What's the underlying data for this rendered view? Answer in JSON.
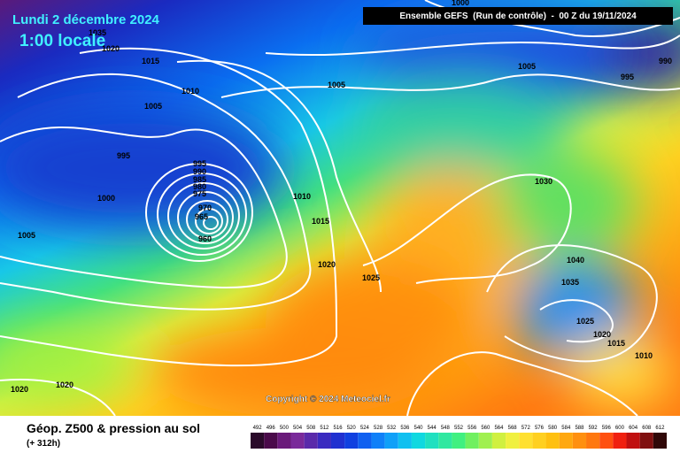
{
  "header": {
    "date": "Lundi 2 décembre 2024",
    "time": "1:00 locale",
    "model": "Ensemble GEFS  (Run de contrôle)  -  00 Z du 19/11/2024"
  },
  "copyright": "Copyright © 2024 Meteociel.fr",
  "footer": {
    "title": "Géop. Z500 & pression au sol",
    "lead": "(+ 312h)"
  },
  "colorbar": {
    "labels": [
      "492",
      "496",
      "500",
      "504",
      "508",
      "512",
      "516",
      "520",
      "524",
      "528",
      "532",
      "536",
      "540",
      "544",
      "548",
      "552",
      "556",
      "560",
      "564",
      "568",
      "572",
      "576",
      "580",
      "584",
      "588",
      "592",
      "596",
      "600",
      "604",
      "608",
      "612"
    ]
  },
  "isobar_labels": [
    "1035",
    "1020",
    "1015",
    "1010",
    "1005",
    "1005",
    "1000",
    "1005",
    "990",
    "995",
    "995",
    "1000",
    "1005",
    "995",
    "990",
    "985",
    "980",
    "975",
    "970",
    "965",
    "960",
    "1010",
    "1015",
    "1020",
    "1025",
    "1030",
    "1040",
    "1035",
    "1025",
    "1020",
    "1015",
    "1010",
    "1020",
    "1020"
  ]
}
